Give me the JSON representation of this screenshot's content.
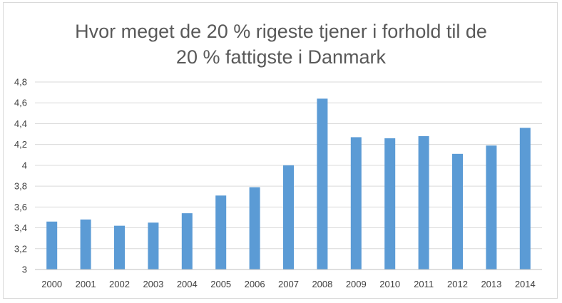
{
  "chart_data": {
    "type": "bar",
    "title_lines": [
      "Hvor meget de 20 % rigeste tjener i forhold til de",
      "20 % fattigste i Danmark"
    ],
    "xlabel": "",
    "ylabel": "",
    "categories": [
      "2000",
      "2001",
      "2002",
      "2003",
      "2004",
      "2005",
      "2006",
      "2007",
      "2008",
      "2009",
      "2010",
      "2011",
      "2012",
      "2013",
      "2014"
    ],
    "values": [
      3.46,
      3.48,
      3.42,
      3.45,
      3.54,
      3.71,
      3.79,
      4.0,
      4.64,
      4.27,
      4.26,
      4.28,
      4.11,
      4.19,
      4.36
    ],
    "ylim": [
      3,
      4.8
    ],
    "yticks": [
      "3",
      "3,2",
      "3,4",
      "3,6",
      "3,8",
      "4",
      "4,2",
      "4,4",
      "4,6",
      "4,8"
    ],
    "grid": true,
    "legend": "none",
    "colors": {
      "bar": "#5b9bd5",
      "grid": "#d9d9d9",
      "axis": "#bfbfbf",
      "title": "#595959",
      "tick": "#404040"
    }
  }
}
